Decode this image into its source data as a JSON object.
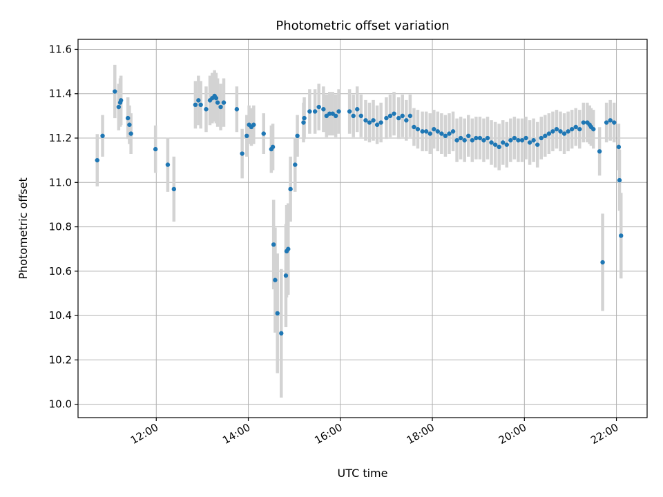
{
  "chart_data": {
    "type": "scatter",
    "title": "Photometric offset variation",
    "xlabel": "UTC time",
    "ylabel": "Photometric offset",
    "xlim": [
      "10:18",
      "22:40"
    ],
    "ylim": [
      9.94,
      11.645
    ],
    "x_ticks": [
      "12:00",
      "14:00",
      "16:00",
      "18:00",
      "20:00",
      "22:00"
    ],
    "y_ticks": [
      "10.0",
      "10.2",
      "10.4",
      "10.6",
      "10.8",
      "11.0",
      "11.2",
      "11.4",
      "11.6"
    ],
    "grid": true,
    "colors": {
      "points": "#1f77b4",
      "error_bars": "#d3d3d3"
    },
    "series": [
      {
        "x": [
          "10:43",
          "10:50",
          "11:06",
          "11:11",
          "11:13",
          "11:14",
          "11:23",
          "11:25",
          "11:27",
          "11:59",
          "12:15",
          "12:23",
          "12:51",
          "12:55",
          "12:58",
          "13:05",
          "13:10",
          "13:13",
          "13:16",
          "13:18",
          "13:20",
          "13:24",
          "13:28",
          "13:45",
          "13:52",
          "13:58",
          "14:01",
          "14:04",
          "14:07",
          "14:20",
          "14:30",
          "14:32",
          "14:33",
          "14:35",
          "14:38",
          "14:43",
          "14:49",
          "14:50",
          "14:52",
          "14:55",
          "15:01",
          "15:04",
          "15:12",
          "15:13",
          "15:20",
          "15:27",
          "15:32",
          "15:38",
          "15:42",
          "15:46",
          "15:50",
          "15:54",
          "15:58",
          "16:12",
          "16:17",
          "16:22",
          "16:27",
          "16:33",
          "16:38",
          "16:43",
          "16:48",
          "16:53",
          "17:00",
          "17:05",
          "17:10",
          "17:16",
          "17:21",
          "17:26",
          "17:31",
          "17:36",
          "17:41",
          "17:47",
          "17:52",
          "17:57",
          "18:02",
          "18:07",
          "18:12",
          "18:17",
          "18:22",
          "18:27",
          "18:32",
          "18:37",
          "18:42",
          "18:47",
          "18:52",
          "18:57",
          "19:02",
          "19:07",
          "19:12",
          "19:17",
          "19:22",
          "19:27",
          "19:32",
          "19:37",
          "19:42",
          "19:47",
          "19:52",
          "19:57",
          "20:02",
          "20:07",
          "20:12",
          "20:17",
          "20:22",
          "20:27",
          "20:32",
          "20:37",
          "20:42",
          "20:47",
          "20:52",
          "20:57",
          "21:02",
          "21:07",
          "21:12",
          "21:17",
          "21:22",
          "21:25",
          "21:27",
          "21:30",
          "21:38",
          "21:42",
          "21:47",
          "21:52",
          "21:57",
          "22:03",
          "22:04",
          "22:06"
        ],
        "y": [
          11.1,
          11.21,
          11.41,
          11.34,
          11.36,
          11.37,
          11.29,
          11.26,
          11.22,
          11.15,
          11.08,
          10.97,
          11.35,
          11.37,
          11.35,
          11.33,
          11.37,
          11.38,
          11.39,
          11.38,
          11.36,
          11.34,
          11.36,
          11.33,
          11.13,
          11.21,
          11.26,
          11.25,
          11.26,
          11.22,
          11.15,
          11.16,
          10.72,
          10.56,
          10.41,
          10.32,
          10.58,
          10.69,
          10.7,
          10.97,
          11.08,
          11.21,
          11.27,
          11.29,
          11.32,
          11.32,
          11.34,
          11.33,
          11.3,
          11.31,
          11.31,
          11.3,
          11.32,
          11.32,
          11.3,
          11.33,
          11.3,
          11.28,
          11.27,
          11.28,
          11.26,
          11.27,
          11.29,
          11.3,
          11.31,
          11.29,
          11.3,
          11.28,
          11.3,
          11.25,
          11.24,
          11.23,
          11.23,
          11.22,
          11.24,
          11.23,
          11.22,
          11.21,
          11.22,
          11.23,
          11.19,
          11.2,
          11.19,
          11.21,
          11.19,
          11.2,
          11.2,
          11.19,
          11.2,
          11.18,
          11.17,
          11.16,
          11.18,
          11.17,
          11.19,
          11.2,
          11.19,
          11.19,
          11.2,
          11.18,
          11.19,
          11.17,
          11.2,
          11.21,
          11.22,
          11.23,
          11.24,
          11.23,
          11.22,
          11.23,
          11.24,
          11.25,
          11.24,
          11.27,
          11.27,
          11.26,
          11.25,
          11.24,
          11.14,
          10.64,
          11.27,
          11.28,
          11.27,
          11.16,
          11.01,
          10.76
        ]
      }
    ]
  }
}
